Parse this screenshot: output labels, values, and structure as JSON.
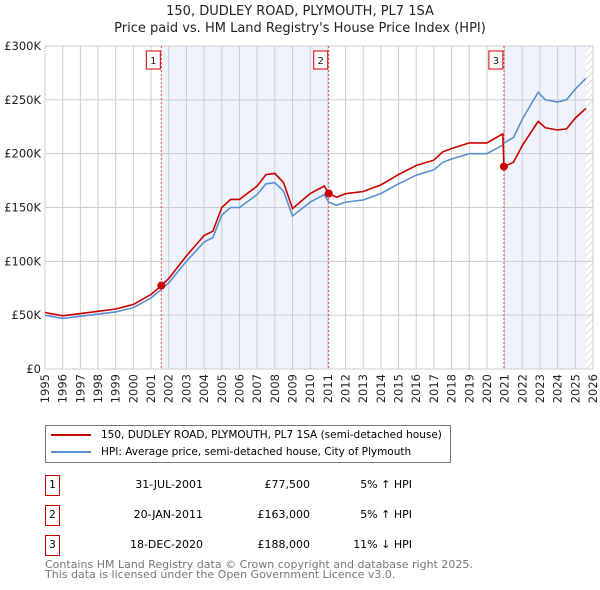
{
  "chart_data": {
    "type": "line",
    "title": "150, DUDLEY ROAD, PLYMOUTH, PL7 1SA",
    "subtitle": "Price paid vs. HM Land Registry's House Price Index (HPI)",
    "xlim": [
      1995,
      2026
    ],
    "ylim": [
      0,
      300000
    ],
    "y_ticks": [
      {
        "v": 0,
        "label": "£0"
      },
      {
        "v": 50000,
        "label": "£50K"
      },
      {
        "v": 100000,
        "label": "£100K"
      },
      {
        "v": 150000,
        "label": "£150K"
      },
      {
        "v": 200000,
        "label": "£200K"
      },
      {
        "v": 250000,
        "label": "£250K"
      },
      {
        "v": 300000,
        "label": "£300K"
      }
    ],
    "x_ticks": [
      "1995",
      "1996",
      "1997",
      "1998",
      "1999",
      "2000",
      "2001",
      "2002",
      "2003",
      "2004",
      "2005",
      "2006",
      "2007",
      "2008",
      "2009",
      "2010",
      "2011",
      "2012",
      "2013",
      "2014",
      "2015",
      "2016",
      "2017",
      "2018",
      "2019",
      "2020",
      "2021",
      "2022",
      "2023",
      "2024",
      "2025",
      "2026"
    ],
    "grid": true,
    "x": [
      1995,
      1996,
      1997,
      1998,
      1999,
      2000,
      2001,
      2001.58,
      2002,
      2003,
      2004,
      2004.5,
      2005,
      2005.5,
      2006,
      2007,
      2007.5,
      2008,
      2008.5,
      2009,
      2010,
      2010.8,
      2011.05,
      2011.5,
      2012,
      2013,
      2014,
      2015,
      2016,
      2017,
      2017.5,
      2018,
      2019,
      2019.5,
      2020,
      2020.9,
      2020.96,
      2021.5,
      2022,
      2022.5,
      2022.9,
      2023.3,
      2024,
      2024.5,
      2025,
      2025.6
    ],
    "series": [
      {
        "name": "150, DUDLEY ROAD, PLYMOUTH, PL7 1SA (semi-detached house)",
        "color": "#cc0000",
        "values": [
          52500,
          49400,
          51500,
          53600,
          55700,
          59900,
          69300,
          77500,
          84000,
          105000,
          124000,
          128000,
          150000,
          157500,
          157500,
          170000,
          180600,
          181700,
          173000,
          149000,
          163000,
          170000,
          163000,
          159600,
          162800,
          164900,
          171000,
          180600,
          189000,
          194000,
          201600,
          204800,
          210000,
          210000,
          210000,
          218400,
          188000,
          192000,
          207600,
          220000,
          230000,
          224000,
          222000,
          223000,
          233000,
          242000
        ]
      },
      {
        "name": "HPI: Average price, semi-detached house, City of Plymouth",
        "color": "#5b8fd0",
        "values": [
          50000,
          47000,
          49000,
          51000,
          53000,
          57000,
          66000,
          74000,
          80000,
          100000,
          118000,
          122000,
          143000,
          150000,
          150000,
          162000,
          172000,
          173000,
          165000,
          142000,
          155000,
          162000,
          155000,
          152000,
          155000,
          157000,
          163000,
          172000,
          180000,
          185000,
          192000,
          195000,
          200000,
          200000,
          200000,
          208000,
          210000,
          215000,
          232000,
          246000,
          257000,
          250000,
          248000,
          250000,
          260000,
          270000
        ]
      }
    ],
    "sales": [
      {
        "label": "1",
        "x": 2001.58,
        "y": 77500
      },
      {
        "label": "2",
        "x": 2011.05,
        "y": 163000
      },
      {
        "label": "3",
        "x": 2020.96,
        "y": 188000
      }
    ],
    "shaded_ranges": [
      [
        2001.58,
        2011.05
      ],
      [
        2020.96,
        2025.6
      ]
    ],
    "hatched_from": 2025.6,
    "legend_position": "bottom"
  },
  "table": [
    {
      "num": "1",
      "date": "31-JUL-2001",
      "price": "£77,500",
      "hpi": "5% ↑ HPI"
    },
    {
      "num": "2",
      "date": "20-JAN-2011",
      "price": "£163,000",
      "hpi": "5% ↑ HPI"
    },
    {
      "num": "3",
      "date": "18-DEC-2020",
      "price": "£188,000",
      "hpi": "11% ↓ HPI"
    }
  ],
  "footer": [
    "Contains HM Land Registry data © Crown copyright and database right 2025.",
    "This data is licensed under the Open Government Licence v3.0."
  ]
}
